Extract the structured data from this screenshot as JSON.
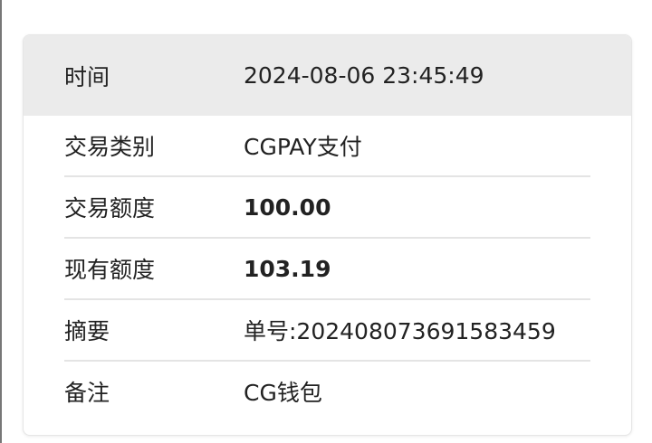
{
  "detail": {
    "header": {
      "label": "时间",
      "value": "2024-08-06 23:45:49"
    },
    "rows": [
      {
        "label": "交易类别",
        "value": "CGPAY支付"
      },
      {
        "label": "交易额度",
        "value": "100.00"
      },
      {
        "label": "现有额度",
        "value": "103.19"
      },
      {
        "label": "摘要",
        "value": "单号:202408073691583459"
      },
      {
        "label": "备注",
        "value": "CG钱包"
      }
    ]
  }
}
